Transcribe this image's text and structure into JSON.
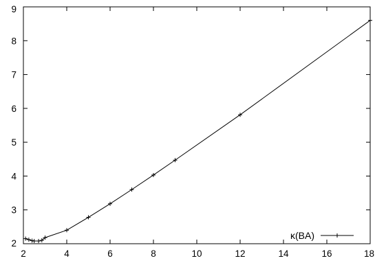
{
  "chart_data": {
    "type": "line",
    "title": "",
    "xlabel": "",
    "ylabel": "",
    "xlim": [
      2,
      18
    ],
    "ylim": [
      2,
      9
    ],
    "x_ticks": [
      "2",
      "4",
      "6",
      "8",
      "10",
      "12",
      "14",
      "16",
      "18"
    ],
    "y_ticks": [
      "2",
      "3",
      "4",
      "5",
      "6",
      "7",
      "8",
      "9"
    ],
    "grid": false,
    "legend_position": "bottom-right",
    "series": [
      {
        "name": "κ(BA)",
        "color": "#000000",
        "marker": "plus",
        "x": [
          2.1,
          2.25,
          2.4,
          2.5,
          2.7,
          2.85,
          3,
          4,
          5,
          6,
          7,
          8,
          9,
          12,
          18
        ],
        "y": [
          2.15,
          2.12,
          2.09,
          2.08,
          2.08,
          2.1,
          2.18,
          2.4,
          2.78,
          3.18,
          3.6,
          4.03,
          4.47,
          5.81,
          8.6
        ]
      }
    ]
  }
}
